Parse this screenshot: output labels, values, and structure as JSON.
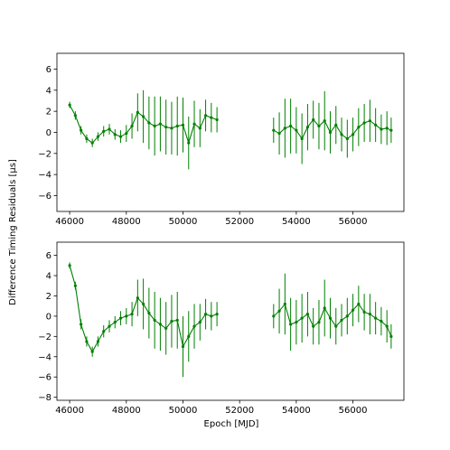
{
  "figure": {
    "ylabel": "Difference Timing Residuals [μs]",
    "xlabel": "Epoch [MJD]"
  },
  "chart_data": [
    {
      "type": "scatter",
      "panel": "top",
      "xlim": [
        45550,
        57800
      ],
      "ylim": [
        -7.5,
        7.5
      ],
      "xticks": [
        "46000",
        "48000",
        "50000",
        "52000",
        "54000",
        "56000"
      ],
      "yticks": [
        "−6",
        "−4",
        "−2",
        "0",
        "2",
        "4",
        "6"
      ],
      "grid": false,
      "series": [
        {
          "color": "#008000",
          "marker": "point with vertical error bar",
          "x": [
            46000,
            46200,
            46400,
            46600,
            46800,
            47000,
            47200,
            47400,
            47600,
            47800,
            48000,
            48200,
            48400,
            48600,
            48800,
            49000,
            49200,
            49400,
            49600,
            49800,
            50000,
            50200,
            50400,
            50600,
            50800,
            51000,
            51200,
            53200,
            53400,
            53600,
            53800,
            54000,
            54200,
            54400,
            54600,
            54800,
            55000,
            55200,
            55400,
            55600,
            55800,
            56000,
            56200,
            56400,
            56600,
            56800,
            57000,
            57200,
            57350
          ],
          "y": [
            2.6,
            1.6,
            0.2,
            -0.6,
            -1.0,
            -0.4,
            0.1,
            0.3,
            -0.2,
            -0.4,
            -0.1,
            0.6,
            1.9,
            1.5,
            0.9,
            0.6,
            0.8,
            0.5,
            0.4,
            0.6,
            0.7,
            -1.0,
            0.8,
            0.4,
            1.6,
            1.4,
            1.2,
            0.2,
            -0.1,
            0.4,
            0.6,
            0.2,
            -0.6,
            0.5,
            1.2,
            0.6,
            1.1,
            0.0,
            0.7,
            -0.2,
            -0.6,
            -0.2,
            0.5,
            0.9,
            1.1,
            0.7,
            0.3,
            0.4,
            0.2
          ],
          "err": [
            0.3,
            0.4,
            0.4,
            0.4,
            0.4,
            0.4,
            0.5,
            0.5,
            0.5,
            0.6,
            0.8,
            1.2,
            1.8,
            2.5,
            2.5,
            2.8,
            2.6,
            2.6,
            2.5,
            2.8,
            2.6,
            2.5,
            2.2,
            1.8,
            1.5,
            1.4,
            1.2,
            1.2,
            2.0,
            2.8,
            2.6,
            2.2,
            2.4,
            2.2,
            1.8,
            2.2,
            2.8,
            2.0,
            1.8,
            1.6,
            1.8,
            1.6,
            1.8,
            1.8,
            2.0,
            1.6,
            1.4,
            1.6,
            1.2
          ]
        }
      ]
    },
    {
      "type": "scatter",
      "panel": "bottom",
      "xlim": [
        45550,
        57800
      ],
      "ylim": [
        -8.3,
        7.3
      ],
      "xticks": [
        "46000",
        "48000",
        "50000",
        "52000",
        "54000",
        "56000"
      ],
      "yticks": [
        "−8",
        "−6",
        "−4",
        "−2",
        "0",
        "2",
        "4",
        "6"
      ],
      "grid": false,
      "series": [
        {
          "color": "#008000",
          "marker": "point with vertical error bar",
          "x": [
            46000,
            46200,
            46400,
            46600,
            46800,
            47000,
            47200,
            47400,
            47600,
            47800,
            48000,
            48200,
            48400,
            48600,
            48800,
            49000,
            49200,
            49400,
            49600,
            49800,
            50000,
            50200,
            50400,
            50600,
            50800,
            51000,
            51200,
            53200,
            53400,
            53600,
            53800,
            54000,
            54200,
            54400,
            54600,
            54800,
            55000,
            55200,
            55400,
            55600,
            55800,
            56000,
            56200,
            56400,
            56600,
            56800,
            57000,
            57200,
            57350
          ],
          "y": [
            5.0,
            3.0,
            -0.8,
            -2.5,
            -3.5,
            -2.5,
            -1.5,
            -1.0,
            -0.6,
            -0.2,
            0.0,
            0.2,
            1.8,
            1.2,
            0.3,
            -0.4,
            -0.8,
            -1.2,
            -0.5,
            -0.4,
            -3.0,
            -2.0,
            -1.0,
            -0.6,
            0.2,
            0.0,
            0.2,
            0.0,
            0.5,
            1.2,
            -0.8,
            -0.6,
            -0.2,
            0.2,
            -1.0,
            -0.6,
            0.8,
            -0.2,
            -1.0,
            -0.4,
            0.0,
            0.6,
            1.2,
            0.4,
            0.2,
            -0.2,
            -0.5,
            -1.0,
            -2.0
          ],
          "err": [
            0.3,
            0.4,
            0.5,
            0.5,
            0.5,
            0.5,
            0.6,
            0.6,
            0.6,
            0.7,
            0.8,
            1.2,
            1.8,
            2.5,
            2.5,
            2.8,
            2.6,
            2.6,
            2.6,
            2.8,
            3.0,
            2.5,
            2.2,
            1.8,
            1.5,
            1.4,
            1.2,
            1.2,
            2.2,
            3.0,
            2.6,
            2.2,
            2.4,
            2.2,
            1.8,
            2.2,
            2.8,
            2.0,
            1.8,
            1.6,
            1.8,
            1.6,
            1.8,
            1.8,
            2.0,
            1.6,
            1.4,
            1.6,
            1.2
          ]
        }
      ]
    }
  ]
}
